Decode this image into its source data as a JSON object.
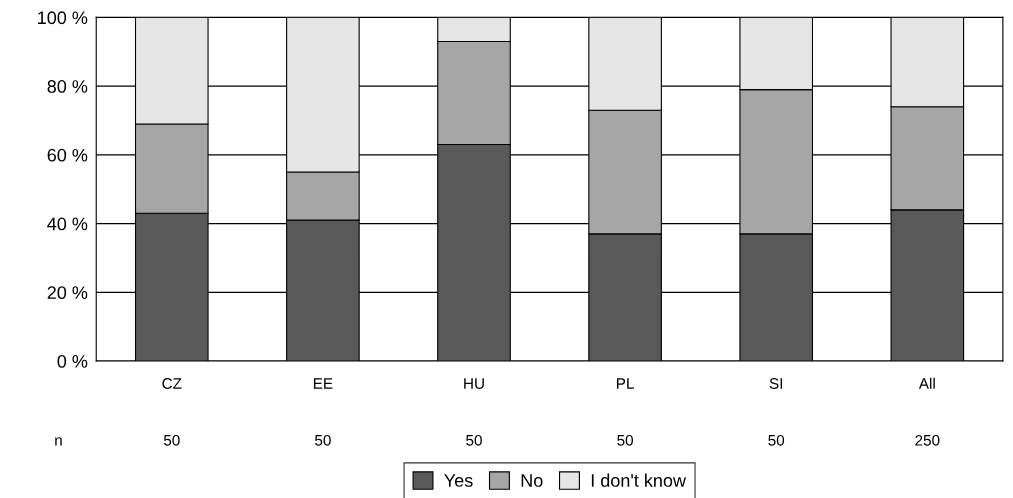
{
  "chart_data": {
    "type": "bar",
    "stacked": true,
    "categories": [
      "CZ",
      "EE",
      "HU",
      "PL",
      "SI",
      "All"
    ],
    "series": [
      {
        "name": "Yes",
        "color": "#595959",
        "values": [
          43,
          41,
          63,
          37,
          37,
          44
        ]
      },
      {
        "name": "No",
        "color": "#a6a6a6",
        "values": [
          26,
          14,
          30,
          36,
          42,
          30
        ]
      },
      {
        "name": "I don't know",
        "color": "#e6e6e6",
        "values": [
          31,
          45,
          7,
          27,
          21,
          26
        ]
      }
    ],
    "ylim": [
      0,
      100
    ],
    "yticks": [
      {
        "value": 0,
        "label": "0 %"
      },
      {
        "value": 20,
        "label": "20 %"
      },
      {
        "value": 40,
        "label": "40 %"
      },
      {
        "value": 60,
        "label": "60 %"
      },
      {
        "value": 80,
        "label": "80 %"
      },
      {
        "value": 100,
        "label": "100 %"
      }
    ],
    "grid": "y",
    "legend": "bottom",
    "annotations": [
      "n",
      "50",
      "50",
      "50",
      "50",
      "50",
      "250"
    ]
  }
}
